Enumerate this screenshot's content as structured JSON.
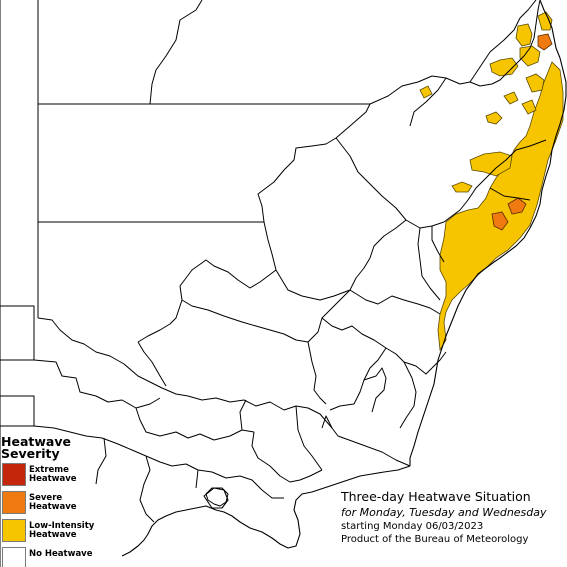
{
  "map": {
    "title": "Three-day Heatwave Situation",
    "subtitle": "for Monday, Tuesday and Wednesday",
    "start_text": "starting Monday 06/03/2023",
    "credit": "Product of the Bureau of Meteorology"
  },
  "legend": {
    "title": "Heatwave\nSeverity",
    "items": [
      {
        "label": "Extreme\nHeatwave",
        "color": "#c4260c",
        "level": "extreme"
      },
      {
        "label": "Severe\nHeatwave",
        "color": "#ef7a0f",
        "level": "severe"
      },
      {
        "label": "Low-Intensity\nHeatwave",
        "color": "#f6c500",
        "level": "low-intensity"
      },
      {
        "label": "No Heatwave",
        "color": "#ffffff",
        "level": "none"
      }
    ]
  },
  "colors": {
    "background": "#ffffff",
    "boundary": "#000000",
    "low_intensity": "#f6c500",
    "severe": "#ef7a0f",
    "extreme": "#c4260c"
  }
}
